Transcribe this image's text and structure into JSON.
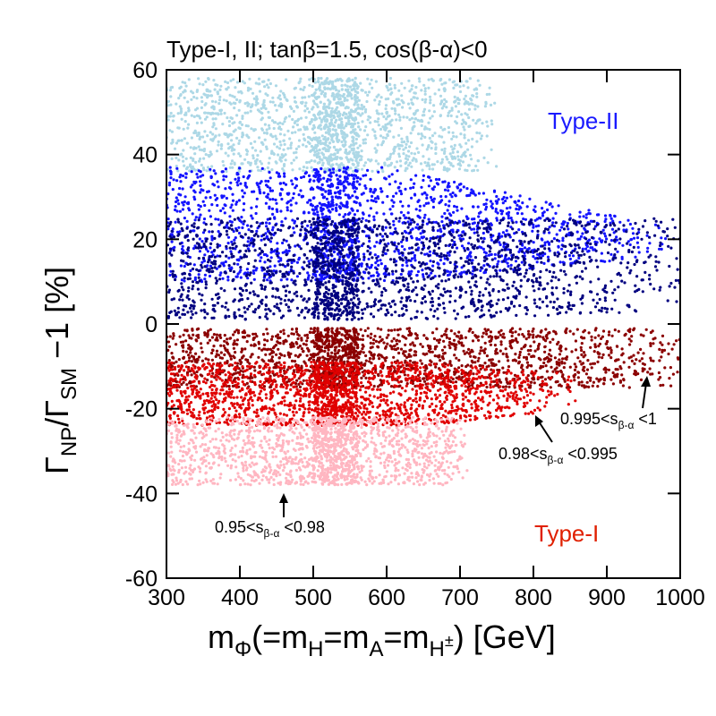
{
  "chart_data": {
    "type": "scatter",
    "title": "Type-I, II; tanβ=1.5, cos(β-α)<0",
    "xlim": [
      300,
      1000
    ],
    "ylim": [
      -60,
      60
    ],
    "xticks": [
      "300",
      "400",
      "500",
      "600",
      "700",
      "800",
      "900",
      "1000"
    ],
    "yticks": [
      "60",
      "40",
      "20",
      "0",
      "-20",
      "-40",
      "-60"
    ],
    "xlabel": {
      "m": "m",
      "sub_phi": "Φ",
      "mid": "(=m",
      "sub_h": "H",
      "eq": "=m",
      "sub_a": "A",
      "eq2": "=m",
      "sub_h2": "H",
      "sup_pm": "±",
      "tail": ") [GeV]"
    },
    "ylabel": {
      "g1": "Γ",
      "sub_np": "NP",
      "slash": "/Γ",
      "sub_sm": "SM",
      "tail": " −1 [%]"
    },
    "grid": false,
    "series": [
      {
        "name": "Type-II",
        "region": "0.95<sβ-α<0.98",
        "color": "#add8e6",
        "x_range": [
          300,
          750
        ],
        "y_range": [
          36,
          58
        ]
      },
      {
        "name": "Type-II",
        "region": "0.98<sβ-α<0.995",
        "color": "#1414ff",
        "x_range": [
          300,
          980
        ],
        "y_range": [
          10,
          37
        ]
      },
      {
        "name": "Type-II",
        "region": "0.995<sβ-α<1",
        "color": "#000080",
        "x_range": [
          300,
          1000
        ],
        "y_range": [
          1,
          25
        ]
      },
      {
        "name": "Type-I",
        "region": "0.995<sβ-α<1",
        "color": "#8b0000",
        "x_range": [
          300,
          1000
        ],
        "y_range": [
          -15,
          -1
        ]
      },
      {
        "name": "Type-I",
        "region": "0.98<sβ-α<0.995",
        "color": "#e00000",
        "x_range": [
          300,
          860
        ],
        "y_range": [
          -24,
          -9
        ]
      },
      {
        "name": "Type-I",
        "region": "0.95<sβ-α<0.98",
        "color": "#ffb6c1",
        "x_range": [
          300,
          710
        ],
        "y_range": [
          -38,
          -22
        ]
      }
    ],
    "labels": {
      "type2": {
        "text": "Type-II",
        "color": "#1a1aff"
      },
      "type1": {
        "text": "Type-I",
        "color": "#e02000"
      }
    },
    "annotations": [
      {
        "pre": "0.95<s",
        "sub": "β-α",
        "post": " <0.98"
      },
      {
        "pre": "0.98<s",
        "sub": "β-α",
        "post": " <0.995"
      },
      {
        "pre": "0.995<s",
        "sub": "β-α",
        "post": " <1"
      }
    ]
  }
}
